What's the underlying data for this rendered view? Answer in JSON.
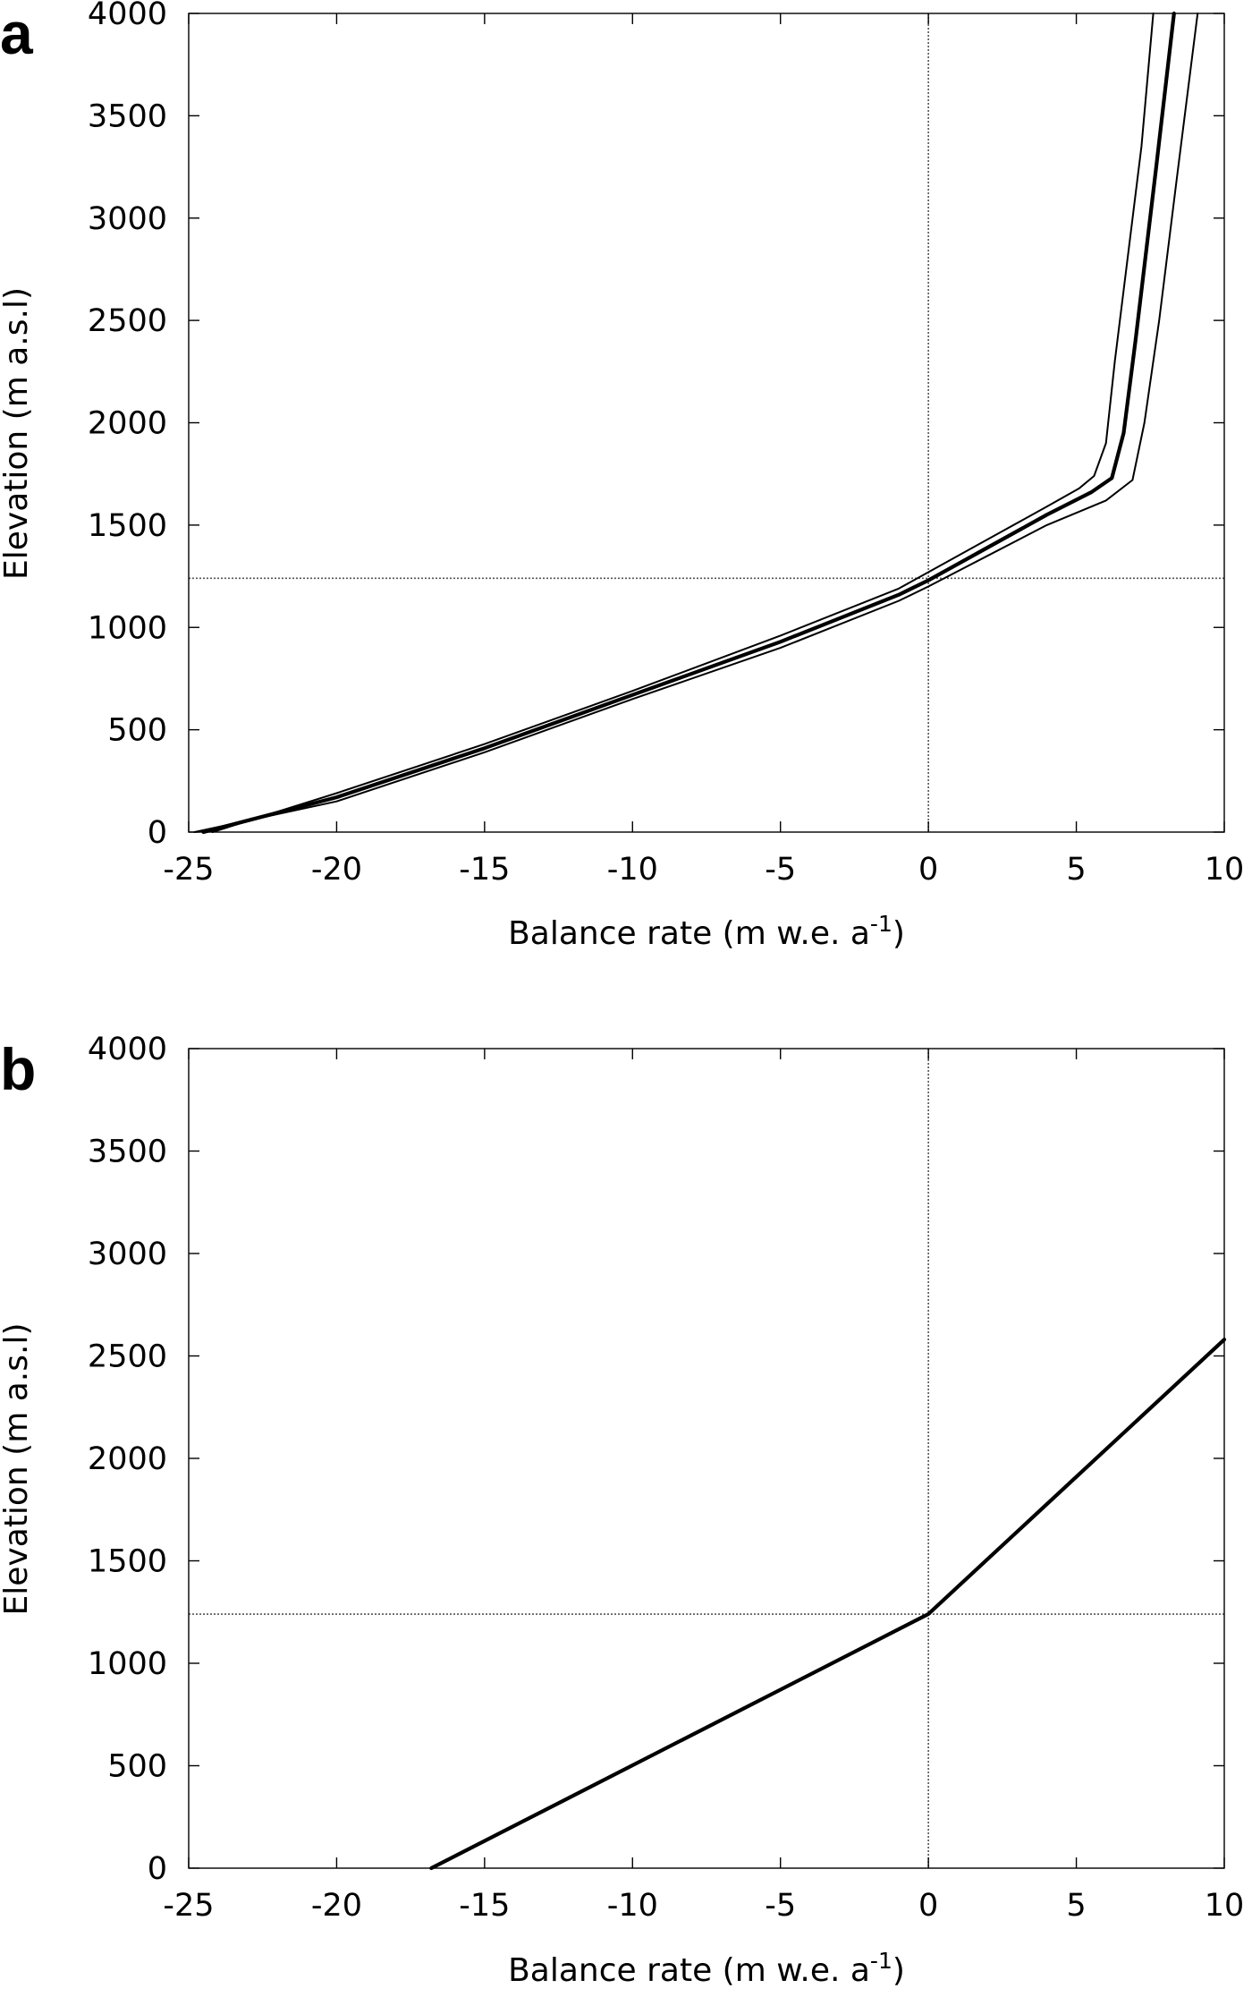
{
  "chart_data": [
    {
      "panel_label": "a",
      "type": "line",
      "xlabel": "Balance rate (m w.e. a",
      "xlabel_superscript": "-1",
      "xlabel_close": ")",
      "ylabel": "Elevation (m a.s.l)",
      "xlim": [
        -25,
        10
      ],
      "ylim": [
        0,
        4000
      ],
      "xticks": [
        -25,
        -20,
        -15,
        -10,
        -5,
        0,
        5,
        10
      ],
      "yticks": [
        0,
        500,
        1000,
        1500,
        2000,
        2500,
        3000,
        3500,
        4000
      ],
      "grid": false,
      "reference_lines": {
        "vertical_x": 0,
        "horizontal_y": 1240
      },
      "series": [
        {
          "style": "thin",
          "x": [
            -24.2,
            -20,
            -15,
            -10,
            -5,
            -1,
            0,
            2,
            4,
            5.1,
            5.6,
            6.0,
            6.3,
            7.2,
            7.6
          ],
          "y": [
            0,
            190,
            430,
            690,
            960,
            1190,
            1270,
            1430,
            1590,
            1680,
            1740,
            1900,
            2300,
            3350,
            4000
          ]
        },
        {
          "style": "thick",
          "x": [
            -24.5,
            -20,
            -15,
            -10,
            -5,
            -1,
            0,
            2,
            4,
            5.5,
            6.2,
            6.6,
            7.0,
            7.7,
            8.3
          ],
          "y": [
            0,
            170,
            410,
            670,
            930,
            1160,
            1230,
            1390,
            1550,
            1660,
            1730,
            1950,
            2400,
            3250,
            4000
          ]
        },
        {
          "style": "thin",
          "x": [
            -24.8,
            -20,
            -15,
            -10,
            -5,
            -1,
            0,
            2,
            4,
            6.0,
            6.9,
            7.3,
            7.8,
            8.4,
            9.1
          ],
          "y": [
            0,
            150,
            390,
            650,
            900,
            1130,
            1200,
            1350,
            1500,
            1620,
            1720,
            2000,
            2500,
            3200,
            4000
          ]
        }
      ]
    },
    {
      "panel_label": "b",
      "type": "line",
      "xlabel": "Balance rate (m w.e. a",
      "xlabel_superscript": "-1",
      "xlabel_close": ")",
      "ylabel": "Elevation (m a.s.l)",
      "xlim": [
        -25,
        10
      ],
      "ylim": [
        0,
        4000
      ],
      "xticks": [
        -25,
        -20,
        -15,
        -10,
        -5,
        0,
        5,
        10
      ],
      "yticks": [
        0,
        500,
        1000,
        1500,
        2000,
        2500,
        3000,
        3500,
        4000
      ],
      "grid": false,
      "reference_lines": {
        "vertical_x": 0,
        "horizontal_y": 1240
      },
      "series": [
        {
          "style": "thick",
          "x": [
            -16.8,
            0,
            10
          ],
          "y": [
            0,
            1240,
            2580
          ]
        }
      ]
    }
  ]
}
